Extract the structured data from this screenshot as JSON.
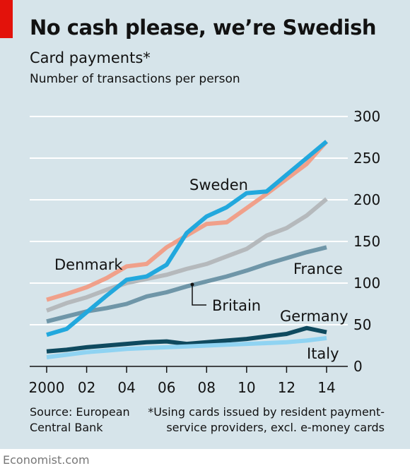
{
  "header": {
    "title": "No cash please, we’re Swedish",
    "subtitle": "Card payments*",
    "units": "Number of transactions per person"
  },
  "footer": {
    "source": "Source: European\nCentral Bank",
    "footnote": "*Using cards issued by resident payment-\nservice providers, excl. e-money cards",
    "credit": "Economist.com"
  },
  "colors": {
    "background": "#d6e4ea",
    "accent_tag": "#e3120b",
    "gridline": "#ffffff",
    "axis": "#121212"
  },
  "chart_data": {
    "type": "line",
    "title": "No cash please, we’re Swedish",
    "subtitle": "Card payments*",
    "ylabel": "Number of transactions per person",
    "xlim": [
      2000,
      2014
    ],
    "ylim": [
      0,
      300
    ],
    "x_ticks": [
      2000,
      2002,
      2004,
      2006,
      2008,
      2010,
      2012,
      2014
    ],
    "x_tick_labels": [
      "2000",
      "02",
      "04",
      "06",
      "08",
      "10",
      "12",
      "14"
    ],
    "y_ticks": [
      0,
      50,
      100,
      150,
      200,
      250,
      300
    ],
    "y_axis_side": "right",
    "grid": true,
    "legend": "direct labels",
    "x": [
      2000,
      2001,
      2002,
      2003,
      2004,
      2005,
      2006,
      2007,
      2008,
      2009,
      2010,
      2011,
      2012,
      2013,
      2014
    ],
    "series": [
      {
        "name": "Denmark",
        "color": "#f0a08a",
        "values": [
          80,
          87,
          95,
          106,
          120,
          123,
          143,
          157,
          171,
          173,
          190,
          207,
          225,
          243,
          270
        ]
      },
      {
        "name": "Britain",
        "color": "#b5b9bc",
        "values": [
          67,
          76,
          83,
          92,
          100,
          105,
          110,
          117,
          123,
          132,
          141,
          157,
          166,
          181,
          201
        ]
      },
      {
        "name": "France",
        "color": "#6f96a8",
        "values": [
          54,
          60,
          66,
          70,
          75,
          84,
          89,
          96,
          102,
          108,
          115,
          123,
          130,
          137,
          143
        ]
      },
      {
        "name": "Sweden",
        "color": "#22a8dd",
        "values": [
          38,
          45,
          65,
          85,
          104,
          108,
          122,
          160,
          180,
          191,
          208,
          210,
          230,
          250,
          270
        ]
      },
      {
        "name": "Germany",
        "color": "#0f4a5f",
        "values": [
          18,
          20,
          23,
          25,
          27,
          29,
          30,
          27,
          29,
          31,
          33,
          36,
          39,
          46,
          41
        ]
      },
      {
        "name": "Italy",
        "color": "#8fd3f2",
        "values": [
          11,
          14,
          17,
          19,
          21,
          22,
          23,
          24,
          25,
          26,
          27,
          28,
          29,
          31,
          34
        ]
      }
    ],
    "labels": {
      "Sweden": "Sweden",
      "Denmark": "Denmark",
      "France": "France",
      "Britain": "Britain",
      "Germany": "Germany",
      "Italy": "Italy"
    }
  }
}
